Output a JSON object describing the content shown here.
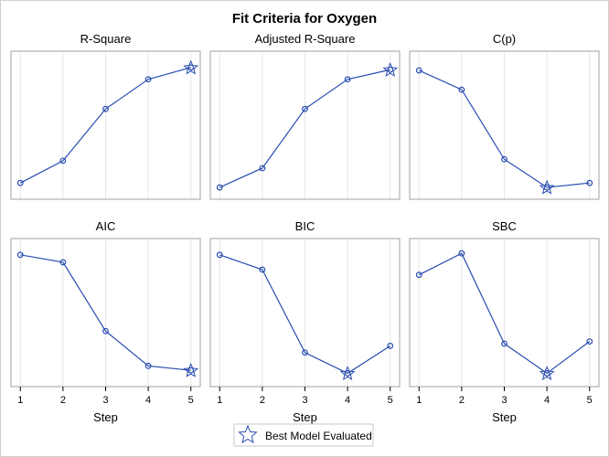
{
  "chart_data": {
    "title": "Fit Criteria for Oxygen",
    "type": "line",
    "layout": "2x3 panel grid",
    "xlabel": "Step",
    "x": [
      1,
      2,
      3,
      4,
      5
    ],
    "xlim": [
      0.78,
      5.22
    ],
    "y_scale": "relative (no y-axis tick labels shown)",
    "grid": "vertical gridlines at x ticks",
    "series_color": "#2a4db0",
    "gridline_color": "#e6e6e6",
    "frame_color": "#a0a0a0",
    "panels": [
      {
        "title": "R-Square",
        "values": [
          0.11,
          0.26,
          0.61,
          0.81,
          0.89
        ],
        "best_step": 5
      },
      {
        "title": "Adjusted R-Square",
        "values": [
          0.08,
          0.21,
          0.61,
          0.81,
          0.875
        ],
        "best_step": 5
      },
      {
        "title": "C(p)",
        "values": [
          0.87,
          0.74,
          0.27,
          0.08,
          0.11
        ],
        "best_step": 4
      },
      {
        "title": "AIC",
        "values": [
          0.89,
          0.84,
          0.375,
          0.14,
          0.11
        ],
        "best_step": 5
      },
      {
        "title": "BIC",
        "values": [
          0.89,
          0.79,
          0.23,
          0.09,
          0.275
        ],
        "best_step": 4
      },
      {
        "title": "SBC",
        "values": [
          0.755,
          0.9,
          0.29,
          0.09,
          0.305
        ],
        "best_step": 4
      }
    ],
    "legend": {
      "label": "Best Model Evaluated",
      "marker": "star-icon",
      "position": "bottom"
    }
  }
}
